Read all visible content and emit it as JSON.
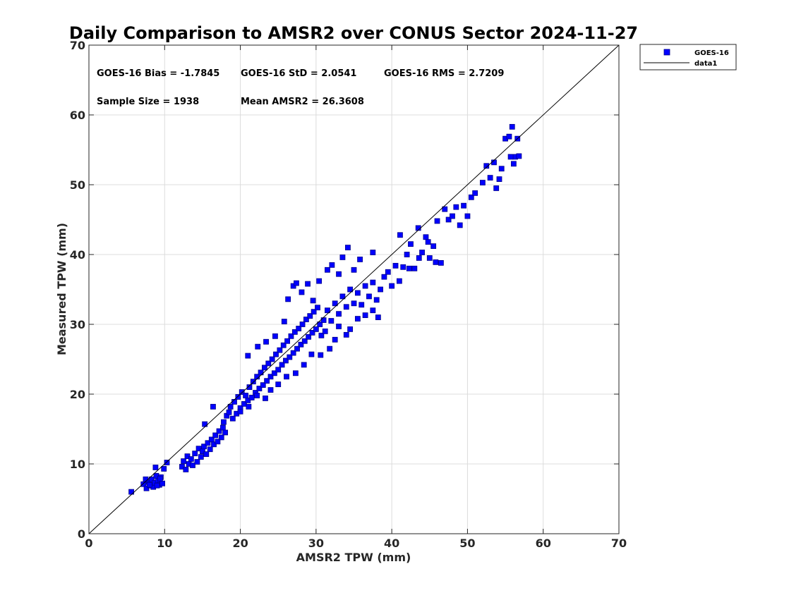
{
  "chart_data": {
    "type": "scatter",
    "title": "Daily Comparison to AMSR2 over CONUS Sector 2024-11-27",
    "xlabel": "AMSR2 TPW (mm)",
    "ylabel": "Measured TPW (mm)",
    "xlim": [
      0,
      70
    ],
    "ylim": [
      0,
      70
    ],
    "xticks": [
      0,
      10,
      20,
      30,
      40,
      50,
      60,
      70
    ],
    "yticks": [
      0,
      10,
      20,
      30,
      40,
      50,
      60,
      70
    ],
    "grid": true,
    "legend_position": "outside-top-right",
    "series": [
      {
        "name": "GOES-16",
        "marker": "square",
        "color": "#0000ff",
        "edgecolor": "#00008b",
        "points": [
          [
            5.6,
            6.0
          ],
          [
            7.2,
            7.1
          ],
          [
            7.6,
            6.5
          ],
          [
            7.9,
            7.4
          ],
          [
            8.1,
            6.9
          ],
          [
            8.3,
            7.8
          ],
          [
            8.5,
            6.7
          ],
          [
            8.7,
            7.3
          ],
          [
            8.9,
            8.3
          ],
          [
            9.1,
            7.6
          ],
          [
            9.3,
            7.0
          ],
          [
            9.5,
            8.1
          ],
          [
            9.7,
            7.2
          ],
          [
            9.9,
            9.3
          ],
          [
            10.3,
            10.2
          ],
          [
            8.8,
            9.5
          ],
          [
            9.0,
            6.9
          ],
          [
            8.0,
            7.0
          ],
          [
            7.5,
            7.8
          ],
          [
            9.4,
            7.9
          ],
          [
            12.3,
            9.6
          ],
          [
            12.5,
            10.4
          ],
          [
            12.8,
            9.2
          ],
          [
            13.0,
            11.1
          ],
          [
            13.2,
            10.0
          ],
          [
            13.5,
            10.7
          ],
          [
            13.7,
            9.8
          ],
          [
            14.0,
            11.5
          ],
          [
            14.3,
            10.3
          ],
          [
            14.5,
            12.2
          ],
          [
            14.8,
            11.0
          ],
          [
            15.0,
            11.8
          ],
          [
            15.2,
            12.5
          ],
          [
            15.5,
            11.4
          ],
          [
            15.7,
            13.0
          ],
          [
            16.0,
            12.1
          ],
          [
            16.2,
            13.5
          ],
          [
            16.5,
            12.8
          ],
          [
            16.7,
            14.1
          ],
          [
            17.0,
            13.2
          ],
          [
            17.2,
            14.7
          ],
          [
            17.5,
            13.8
          ],
          [
            17.7,
            15.2
          ],
          [
            18.0,
            14.5
          ],
          [
            15.3,
            15.7
          ],
          [
            16.4,
            18.2
          ],
          [
            17.8,
            16.0
          ],
          [
            18.2,
            16.9
          ],
          [
            18.5,
            17.4
          ],
          [
            18.7,
            18.2
          ],
          [
            19.0,
            16.5
          ],
          [
            19.2,
            18.9
          ],
          [
            19.5,
            17.2
          ],
          [
            19.7,
            19.6
          ],
          [
            20.0,
            18.0
          ],
          [
            20.2,
            20.3
          ],
          [
            20.5,
            18.6
          ],
          [
            20.7,
            19.8
          ],
          [
            21.0,
            19.1
          ],
          [
            21.2,
            21.0
          ],
          [
            21.5,
            19.5
          ],
          [
            21.7,
            21.8
          ],
          [
            22.0,
            20.2
          ],
          [
            22.2,
            22.5
          ],
          [
            22.5,
            20.8
          ],
          [
            22.7,
            23.1
          ],
          [
            23.0,
            21.3
          ],
          [
            23.2,
            23.8
          ],
          [
            23.5,
            21.9
          ],
          [
            23.7,
            24.4
          ],
          [
            24.0,
            22.5
          ],
          [
            24.2,
            25.0
          ],
          [
            24.5,
            23.0
          ],
          [
            24.7,
            25.7
          ],
          [
            25.0,
            23.5
          ],
          [
            25.2,
            26.3
          ],
          [
            25.5,
            24.2
          ],
          [
            25.7,
            27.0
          ],
          [
            26.0,
            24.8
          ],
          [
            26.2,
            27.6
          ],
          [
            26.5,
            25.3
          ],
          [
            26.7,
            28.3
          ],
          [
            27.0,
            25.9
          ],
          [
            27.2,
            28.9
          ],
          [
            27.5,
            26.5
          ],
          [
            27.7,
            29.4
          ],
          [
            28.0,
            27.1
          ],
          [
            28.2,
            30.0
          ],
          [
            28.5,
            27.6
          ],
          [
            28.7,
            30.7
          ],
          [
            29.0,
            28.2
          ],
          [
            29.2,
            31.2
          ],
          [
            29.5,
            28.8
          ],
          [
            29.7,
            31.8
          ],
          [
            30.0,
            29.3
          ],
          [
            30.2,
            32.4
          ],
          [
            30.5,
            30.0
          ],
          [
            30.7,
            28.4
          ],
          [
            31.0,
            30.6
          ],
          [
            31.2,
            29.0
          ],
          [
            21.0,
            25.5
          ],
          [
            22.3,
            26.8
          ],
          [
            23.4,
            27.5
          ],
          [
            24.6,
            28.3
          ],
          [
            25.8,
            30.4
          ],
          [
            26.3,
            33.6
          ],
          [
            27.0,
            35.5
          ],
          [
            27.4,
            35.9
          ],
          [
            28.1,
            34.6
          ],
          [
            28.9,
            35.8
          ],
          [
            29.6,
            33.4
          ],
          [
            30.4,
            36.2
          ],
          [
            31.5,
            37.8
          ],
          [
            32.1,
            38.5
          ],
          [
            33.0,
            37.2
          ],
          [
            33.5,
            39.6
          ],
          [
            34.2,
            41.0
          ],
          [
            35.0,
            37.8
          ],
          [
            35.8,
            39.3
          ],
          [
            37.5,
            40.3
          ],
          [
            31.5,
            32.0
          ],
          [
            32.0,
            30.5
          ],
          [
            32.5,
            33.0
          ],
          [
            33.0,
            31.5
          ],
          [
            33.5,
            34.0
          ],
          [
            34.0,
            32.5
          ],
          [
            34.5,
            35.0
          ],
          [
            35.0,
            33.0
          ],
          [
            35.5,
            34.5
          ],
          [
            36.0,
            32.8
          ],
          [
            36.5,
            35.5
          ],
          [
            37.0,
            34.0
          ],
          [
            37.5,
            36.0
          ],
          [
            38.0,
            33.5
          ],
          [
            38.5,
            35.0
          ],
          [
            39.0,
            36.8
          ],
          [
            39.5,
            37.5
          ],
          [
            40.0,
            35.5
          ],
          [
            40.5,
            38.4
          ],
          [
            41.0,
            36.2
          ],
          [
            34.0,
            28.5
          ],
          [
            34.5,
            29.3
          ],
          [
            35.5,
            30.8
          ],
          [
            36.5,
            31.3
          ],
          [
            37.5,
            32.0
          ],
          [
            38.2,
            31.0
          ],
          [
            33.0,
            29.7
          ],
          [
            32.5,
            27.8
          ],
          [
            31.8,
            26.5
          ],
          [
            30.6,
            25.6
          ],
          [
            29.4,
            25.7
          ],
          [
            28.4,
            24.2
          ],
          [
            27.3,
            23.0
          ],
          [
            26.1,
            22.5
          ],
          [
            25.0,
            21.4
          ],
          [
            24.0,
            20.6
          ],
          [
            23.3,
            19.4
          ],
          [
            22.2,
            19.8
          ],
          [
            21.1,
            18.2
          ],
          [
            20.0,
            17.5
          ],
          [
            41.5,
            38.2
          ],
          [
            42.0,
            40.0
          ],
          [
            42.5,
            41.5
          ],
          [
            43.0,
            38.0
          ],
          [
            43.5,
            43.8
          ],
          [
            44.0,
            40.3
          ],
          [
            44.5,
            42.5
          ],
          [
            45.0,
            39.5
          ],
          [
            45.5,
            41.2
          ],
          [
            46.0,
            44.8
          ],
          [
            46.5,
            38.8
          ],
          [
            47.0,
            46.5
          ],
          [
            47.5,
            45.0
          ],
          [
            48.0,
            45.5
          ],
          [
            48.5,
            46.8
          ],
          [
            49.0,
            44.2
          ],
          [
            49.5,
            47.0
          ],
          [
            50.0,
            45.5
          ],
          [
            50.5,
            48.2
          ],
          [
            51.0,
            48.8
          ],
          [
            52.0,
            50.3
          ],
          [
            52.5,
            52.7
          ],
          [
            53.0,
            51.0
          ],
          [
            53.5,
            53.2
          ],
          [
            53.8,
            49.5
          ],
          [
            54.2,
            50.8
          ],
          [
            54.5,
            52.3
          ],
          [
            55.0,
            56.6
          ],
          [
            55.5,
            56.9
          ],
          [
            55.9,
            58.3
          ],
          [
            56.1,
            53.0
          ],
          [
            56.3,
            54.0
          ],
          [
            56.6,
            56.6
          ],
          [
            56.8,
            54.1
          ],
          [
            55.7,
            54.0
          ],
          [
            45.8,
            38.9
          ],
          [
            44.8,
            41.8
          ],
          [
            43.6,
            39.5
          ],
          [
            42.3,
            38.0
          ],
          [
            41.1,
            42.8
          ]
        ]
      }
    ],
    "reference_line": {
      "name": "data1",
      "x": [
        0,
        70
      ],
      "y": [
        0,
        70
      ],
      "color": "#000000"
    }
  },
  "stats": {
    "bias": "GOES-16 Bias = -1.7845",
    "std": "GOES-16 StD = 2.0541",
    "rms": "GOES-16 RMS = 2.7209",
    "sample_size": "Sample Size = 1938",
    "mean_amsr2": "Mean AMSR2 = 26.3608"
  },
  "legend": {
    "entries": [
      "GOES-16",
      "data1"
    ]
  }
}
